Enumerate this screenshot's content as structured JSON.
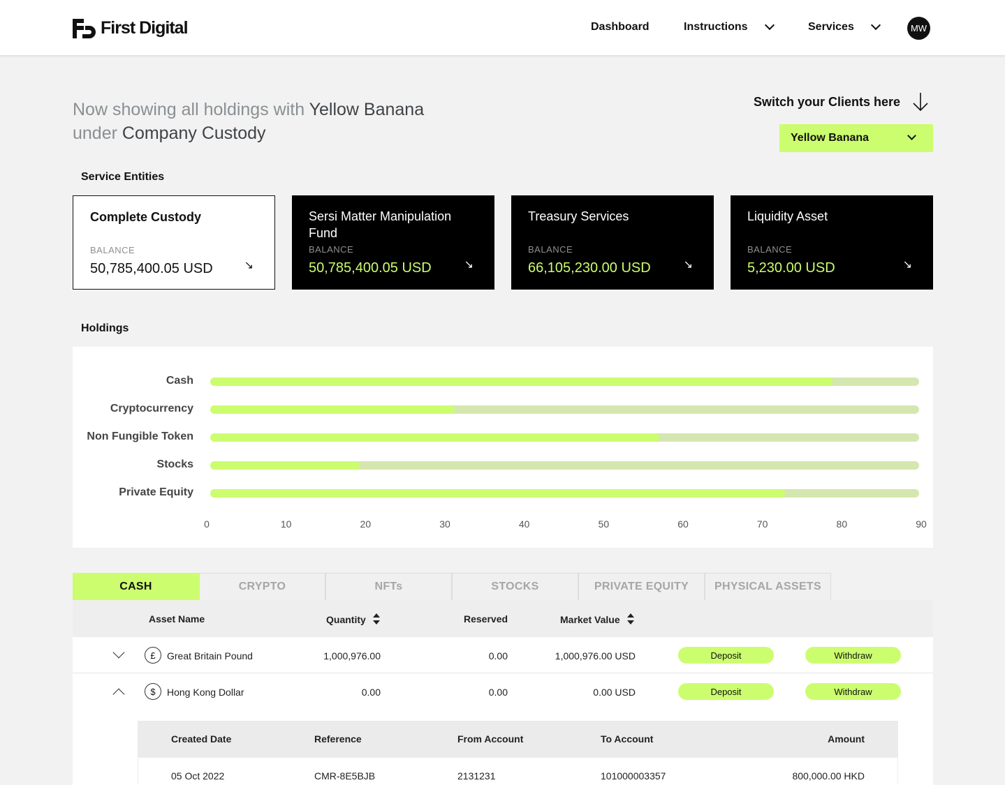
{
  "header": {
    "brand": "First Digital",
    "nav": [
      "Dashboard",
      "Instructions",
      "Services"
    ],
    "avatar_initials": "MW"
  },
  "intro": {
    "prefix": "Now showing all holdings with ",
    "client": "Yellow Banana",
    "middle": "under ",
    "custody": "Company Custody"
  },
  "switcher": {
    "label": "Switch your Clients here",
    "selected": "Yellow Banana"
  },
  "service_entities": {
    "title": "Service Entities",
    "balance_label": "BALANCE",
    "cards": [
      {
        "name": "Complete Custody",
        "balance": "50,785,400.05 USD"
      },
      {
        "name": "Sersi Matter Manipulation Fund",
        "balance": "50,785,400.05 USD"
      },
      {
        "name": "Treasury Services",
        "balance": "66,105,230.00 USD"
      },
      {
        "name": "Liquidity Asset",
        "balance": "5,230.00 USD"
      }
    ]
  },
  "holdings": {
    "title": "Holdings",
    "chart_data": {
      "type": "bar",
      "orientation": "horizontal",
      "categories": [
        "Cash",
        "Cryptocurrency",
        "Non Fungible Token",
        "Stocks",
        "Private Equity"
      ],
      "values": [
        79,
        31,
        57,
        19,
        73
      ],
      "xlim": [
        0,
        90
      ],
      "xticks": [
        "0",
        "10",
        "20",
        "30",
        "40",
        "50",
        "60",
        "70",
        "80",
        "90"
      ],
      "colors": {
        "fill": "#ccfd6f",
        "track": "#d4e7b0"
      }
    }
  },
  "tabs": [
    "CASH",
    "CRYPTO",
    "NFTs",
    "STOCKS",
    "PRIVATE EQUITY",
    "PHYSICAL ASSETS"
  ],
  "table": {
    "headers": {
      "asset": "Asset Name",
      "quantity": "Quantity",
      "reserved": "Reserved",
      "market": "Market Value"
    },
    "rows": [
      {
        "icon": "£",
        "name": "Great Britain Pound",
        "quantity": "1,000,976.00",
        "reserved": "0.00",
        "market": "1,000,976.00 USD",
        "deposit": "Deposit",
        "withdraw": "Withdraw"
      },
      {
        "icon": "$",
        "name": "Hong Kong Dollar",
        "quantity": "0.00",
        "reserved": "0.00",
        "market": "0.00 USD",
        "deposit": "Deposit",
        "withdraw": "Withdraw"
      }
    ],
    "sub": {
      "headers": {
        "created": "Created Date",
        "reference": "Reference",
        "from": "From Account",
        "to": "To Account",
        "amount": "Amount"
      },
      "rows": [
        {
          "created": "05 Oct 2022",
          "reference": "CMR-8E5BJB",
          "from": "2131231",
          "to": "101000003357",
          "amount": "800,000.00 HKD"
        }
      ]
    }
  },
  "colors": {
    "accent": "#ccfd6f",
    "dark": "#000000"
  }
}
